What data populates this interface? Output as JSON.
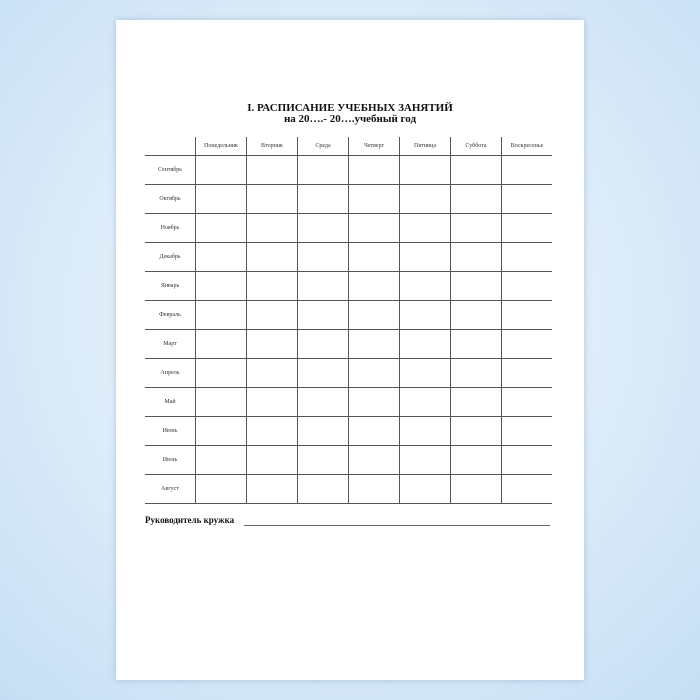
{
  "title": "I. РАСПИСАНИЕ УЧЕБНЫХ ЗАНЯТИЙ",
  "subtitle": "на 20….- 20….учебный год",
  "days": [
    "Понедельник",
    "Вторник",
    "Среда",
    "Четверг",
    "Пятница",
    "Суббота",
    "Воскресенье"
  ],
  "months": [
    "Сентябрь",
    "Октябрь",
    "Ноябрь",
    "Декабрь",
    "Январь",
    "Февраль",
    "Март",
    "Апрель",
    "Май",
    "Июнь",
    "Июль",
    "Август"
  ],
  "footer_label": "Руководитель кружка"
}
